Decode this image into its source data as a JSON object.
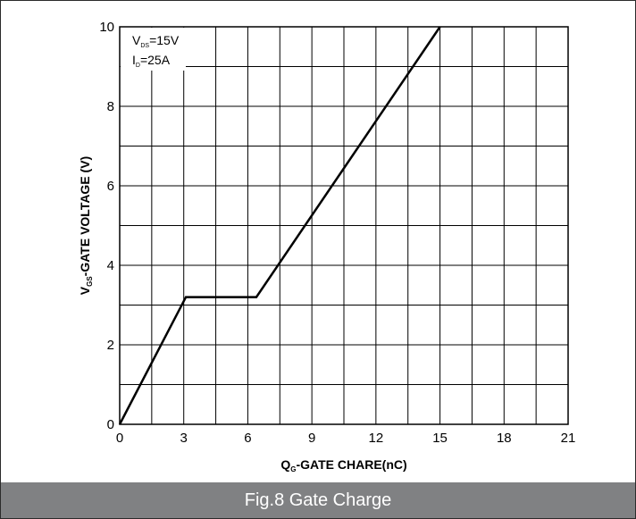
{
  "caption": "Fig.8 Gate Charge",
  "chart_data": {
    "type": "line",
    "title": "",
    "xlabel_main": "Q",
    "xlabel_sub": "G",
    "xlabel_rest": "-GATE CHARE(nC)",
    "ylabel_main": "V",
    "ylabel_sub": "GS",
    "ylabel_rest": "-GATE VOLTAGE (V)",
    "xlim": [
      0,
      21
    ],
    "ylim": [
      0,
      10
    ],
    "xticks": [
      0,
      3,
      6,
      9,
      12,
      15,
      18,
      21
    ],
    "yticks": [
      0,
      2,
      4,
      6,
      8,
      10
    ],
    "grid": true,
    "annotations": [
      {
        "main": "V",
        "sub": "DS",
        "rest": "=15V"
      },
      {
        "main": "I",
        "sub": "D",
        "rest": "=25A"
      }
    ],
    "series": [
      {
        "x": [
          0,
          3.1,
          6.4,
          15
        ],
        "y": [
          0,
          3.2,
          3.2,
          10
        ]
      }
    ]
  }
}
